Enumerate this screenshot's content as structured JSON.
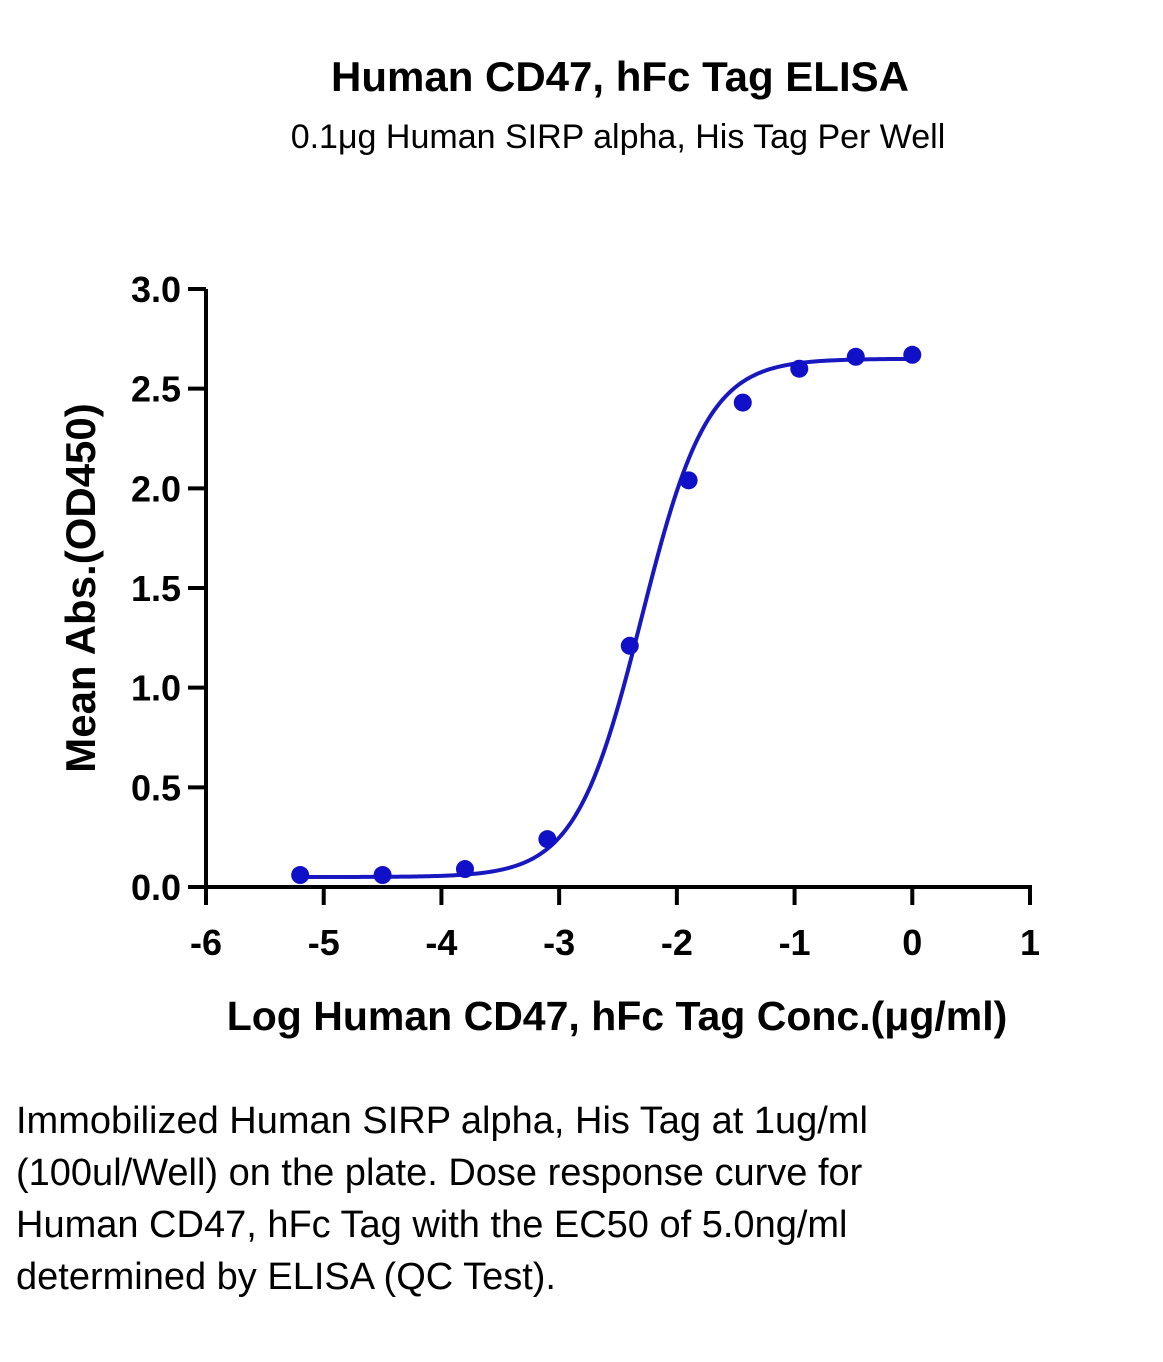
{
  "chart_data": {
    "type": "scatter",
    "title": "Human CD47, hFc Tag ELISA",
    "subtitle": "0.1μg Human SIRP alpha, His Tag Per Well",
    "xlabel": "Log Human CD47, hFc Tag Conc.(μg/ml)",
    "ylabel": "Mean Abs.(OD450)",
    "xlim": [
      -6,
      1
    ],
    "ylim": [
      0,
      3
    ],
    "xticks": [
      -6,
      -5,
      -4,
      -3,
      -2,
      -1,
      0,
      1
    ],
    "yticks": [
      0,
      0.5,
      1,
      1.5,
      2,
      2.5,
      3
    ],
    "xtick_labels": [
      "-6",
      "-5",
      "-4",
      "-3",
      "-2",
      "-1",
      "0",
      "1"
    ],
    "ytick_labels": [
      "0.0",
      "0.5",
      "1.0",
      "1.5",
      "2.0",
      "2.5",
      "3.0"
    ],
    "grid": false,
    "series": [
      {
        "x": [
          -5.2,
          -4.5,
          -3.8,
          -3.1,
          -2.4,
          -1.9,
          -1.44,
          -0.96,
          -0.48,
          0.0
        ],
        "y": [
          0.06,
          0.06,
          0.09,
          0.24,
          1.21,
          2.04,
          2.43,
          2.6,
          2.66,
          2.67
        ],
        "color": "#1010c8"
      }
    ],
    "fit_curve": {
      "model": "4PL",
      "bottom": 0.05,
      "top": 2.65,
      "log_ec50": -2.3,
      "hill": 1.55,
      "color": "#1818c0"
    }
  },
  "caption": "Immobilized Human SIRP alpha, His Tag at 1ug/ml (100ul/Well) on the plate. Dose response curve for Human CD47, hFc Tag with the EC50 of 5.0ng/ml determined by ELISA (QC Test)."
}
